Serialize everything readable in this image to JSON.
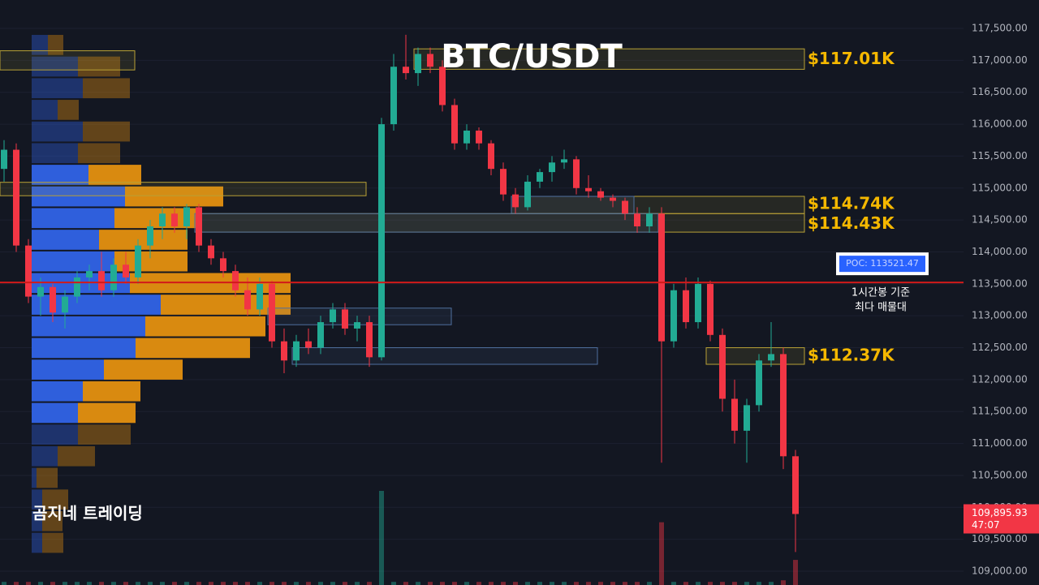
{
  "chart_data": {
    "type": "candlestick",
    "title": "BTC/USDT",
    "watermark": "곰지네 트레이딩",
    "ylim": [
      108784,
      117945
    ],
    "yticks": [
      {
        "value": 117500,
        "label": "117,500.00"
      },
      {
        "value": 117000,
        "label": "117,000.00"
      },
      {
        "value": 116500,
        "label": "116,500.00"
      },
      {
        "value": 116000,
        "label": "116,000.00"
      },
      {
        "value": 115500,
        "label": "115,500.00"
      },
      {
        "value": 115000,
        "label": "115,000.00"
      },
      {
        "value": 114500,
        "label": "114,500.00"
      },
      {
        "value": 114000,
        "label": "114,000.00"
      },
      {
        "value": 113500,
        "label": "113,500.00"
      },
      {
        "value": 113000,
        "label": "113,000.00"
      },
      {
        "value": 112500,
        "label": "112,500.00"
      },
      {
        "value": 112000,
        "label": "112,000.00"
      },
      {
        "value": 111500,
        "label": "111,500.00"
      },
      {
        "value": 111000,
        "label": "111,000.00"
      },
      {
        "value": 110500,
        "label": "110,500.00"
      },
      {
        "value": 110000,
        "label": "110,000.00"
      },
      {
        "value": 109500,
        "label": "109,500.00"
      },
      {
        "value": 109000,
        "label": "109,000.00"
      }
    ],
    "grid": true,
    "up_color": "#22ab94",
    "down_color": "#f23645",
    "ohlc": [
      [
        115300,
        115750,
        115100,
        115600
      ],
      [
        115600,
        115700,
        114000,
        114100
      ],
      [
        114100,
        114200,
        113200,
        113300
      ],
      [
        113300,
        113600,
        113000,
        113450
      ],
      [
        113450,
        113500,
        112900,
        113050
      ],
      [
        113050,
        113400,
        112800,
        113300
      ],
      [
        113300,
        113700,
        113200,
        113600
      ],
      [
        113600,
        113800,
        113400,
        113700
      ],
      [
        113700,
        114000,
        113300,
        113400
      ],
      [
        113400,
        113900,
        113300,
        113800
      ],
      [
        113800,
        114000,
        113500,
        113600
      ],
      [
        113600,
        114200,
        113500,
        114100
      ],
      [
        114100,
        114500,
        113900,
        114400
      ],
      [
        114400,
        114700,
        114200,
        114600
      ],
      [
        114600,
        114700,
        114300,
        114400
      ],
      [
        114400,
        114750,
        114200,
        114700
      ],
      [
        114700,
        114750,
        114000,
        114100
      ],
      [
        114100,
        114200,
        113800,
        113900
      ],
      [
        113900,
        114000,
        113600,
        113700
      ],
      [
        113700,
        113800,
        113300,
        113400
      ],
      [
        113400,
        113600,
        113000,
        113100
      ],
      [
        113100,
        113600,
        113000,
        113500
      ],
      [
        113500,
        113550,
        112500,
        112600
      ],
      [
        112600,
        112800,
        112100,
        112300
      ],
      [
        112300,
        112700,
        112200,
        112600
      ],
      [
        112600,
        112800,
        112400,
        112500
      ],
      [
        112500,
        113000,
        112400,
        112900
      ],
      [
        112900,
        113200,
        112800,
        113100
      ],
      [
        113100,
        113200,
        112700,
        112800
      ],
      [
        112800,
        113000,
        112600,
        112900
      ],
      [
        112900,
        113000,
        112200,
        112350
      ],
      [
        112350,
        116100,
        112300,
        116000
      ],
      [
        116000,
        117100,
        115900,
        116900
      ],
      [
        116900,
        117400,
        116700,
        116800
      ],
      [
        116800,
        117200,
        116600,
        117100
      ],
      [
        117100,
        117200,
        116800,
        116900
      ],
      [
        116900,
        117000,
        116200,
        116300
      ],
      [
        116300,
        116400,
        115600,
        115700
      ],
      [
        115700,
        116000,
        115600,
        115900
      ],
      [
        115900,
        115950,
        115600,
        115700
      ],
      [
        115700,
        115750,
        115200,
        115300
      ],
      [
        115300,
        115400,
        114800,
        114900
      ],
      [
        114900,
        115000,
        114600,
        114700
      ],
      [
        114700,
        115200,
        114650,
        115100
      ],
      [
        115100,
        115300,
        115000,
        115250
      ],
      [
        115250,
        115500,
        115100,
        115400
      ],
      [
        115400,
        115600,
        115300,
        115450
      ],
      [
        115450,
        115500,
        114900,
        115000
      ],
      [
        115000,
        115200,
        114850,
        114950
      ],
      [
        114950,
        115000,
        114800,
        114850
      ],
      [
        114850,
        114900,
        114700,
        114800
      ],
      [
        114800,
        114850,
        114500,
        114600
      ],
      [
        114600,
        114700,
        114300,
        114400
      ],
      [
        114400,
        114700,
        114300,
        114600
      ],
      [
        114600,
        114700,
        110700,
        112600
      ],
      [
        112600,
        113500,
        112500,
        113400
      ],
      [
        113400,
        113600,
        112800,
        112900
      ],
      [
        112900,
        113600,
        112800,
        113500
      ],
      [
        113500,
        113550,
        112600,
        112700
      ],
      [
        112700,
        112800,
        111500,
        111700
      ],
      [
        111700,
        112000,
        111000,
        111200
      ],
      [
        111200,
        111700,
        110700,
        111600
      ],
      [
        111600,
        112400,
        111500,
        112300
      ],
      [
        112300,
        112900,
        112200,
        112400
      ],
      [
        112400,
        112500,
        110600,
        110800
      ],
      [
        110800,
        110900,
        109300,
        109895.93
      ]
    ],
    "volume": [
      2,
      2,
      2,
      2,
      2,
      2,
      2,
      2,
      2,
      2,
      2,
      2,
      2,
      2,
      2,
      2,
      2,
      2,
      2,
      2,
      2,
      2,
      2,
      2,
      2,
      2,
      2,
      2,
      2,
      2,
      2,
      60,
      2,
      2,
      2,
      2,
      2,
      2,
      2,
      2,
      2,
      2,
      2,
      2,
      2,
      2,
      2,
      2,
      2,
      2,
      2,
      2,
      2,
      2,
      40,
      2,
      2,
      2,
      2,
      2,
      2,
      2,
      2,
      2,
      3,
      16
    ],
    "volume_lim": [
      0,
      60
    ],
    "volume_profile": {
      "bins": [
        117411,
        117072,
        116733,
        116394,
        116055,
        115716,
        115377,
        115038,
        114699,
        114360,
        114021,
        113682,
        113343,
        113004,
        112665,
        112326,
        111987,
        111648,
        111309,
        110970,
        110631,
        110292,
        109953,
        109614,
        109275
      ],
      "buy": [
        20,
        57,
        63,
        32,
        63,
        57,
        70,
        115,
        102,
        83,
        102,
        121,
        159,
        140,
        128,
        89,
        63,
        57,
        57,
        32,
        6,
        13,
        13,
        13
      ],
      "sell": [
        19,
        52,
        58,
        26,
        58,
        52,
        65,
        121,
        103,
        109,
        90,
        198,
        160,
        148,
        141,
        97,
        71,
        71,
        65,
        46,
        26,
        32,
        25,
        26
      ],
      "value_area": [
        111309,
        115377
      ],
      "buy_color": "#2f5fdc",
      "sell_color": "#d98a10"
    },
    "zones": [
      {
        "lo": 116850,
        "hi": 117150,
        "start": 0,
        "end": 10,
        "color": "#b8a136"
      },
      {
        "lo": 114880,
        "hi": 115090,
        "start": 0,
        "end": 29,
        "color": "#b8a136"
      },
      {
        "lo": 116860,
        "hi": 117180,
        "start": 34,
        "end": 65,
        "color": "#b8a136",
        "price_label": {
          "value": 117010,
          "label": "$117.01K"
        }
      },
      {
        "lo": 114600,
        "hi": 114870,
        "start": 42,
        "end": 65,
        "color": "#b8a136",
        "price_label": {
          "value": 114740,
          "label": "$114.74K"
        }
      },
      {
        "lo": 114600,
        "hi": 114870,
        "start": 42,
        "end": 51,
        "color": "#4f6f9f"
      },
      {
        "lo": 114310,
        "hi": 114600,
        "start": 16,
        "end": 65,
        "color": "#b8a136",
        "price_label": {
          "value": 114430,
          "label": "$114.43K"
        }
      },
      {
        "lo": 114310,
        "hi": 114600,
        "start": 16,
        "end": 53,
        "color": "#4f6f9f"
      },
      {
        "lo": 112860,
        "hi": 113120,
        "start": 22,
        "end": 36,
        "color": "#4f6f9f"
      },
      {
        "lo": 112240,
        "hi": 112500,
        "start": 24,
        "end": 48,
        "color": "#4f6f9f"
      },
      {
        "lo": 112240,
        "hi": 112500,
        "start": 58,
        "end": 65,
        "color": "#b8a136",
        "price_label": {
          "value": 112370,
          "label": "$112.37K"
        }
      }
    ],
    "zone_label_color": "#f5b800",
    "poc": {
      "value": 113521.47,
      "label": "POC: 113521.47"
    },
    "poc_color": "#d11a1a",
    "poc_note": [
      "1시간봉 기준",
      "최다 매물대"
    ],
    "current_price": {
      "value": 109895.93,
      "label": "109,895.93"
    },
    "countdown": "47:07"
  }
}
